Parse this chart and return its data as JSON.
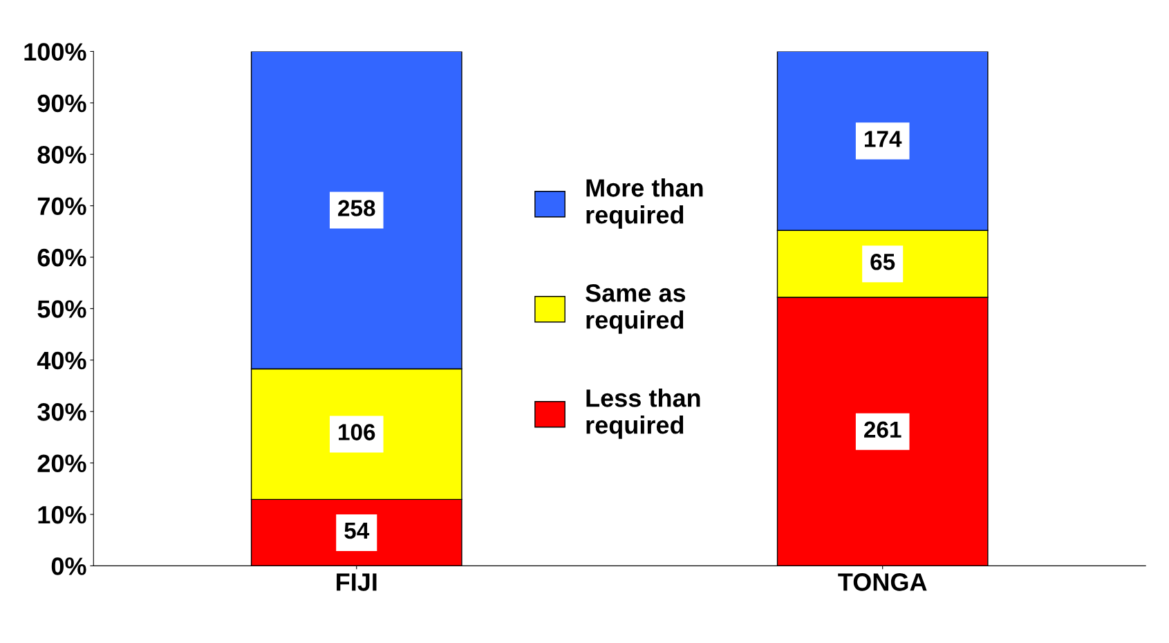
{
  "chart_data": {
    "type": "bar",
    "stacked": true,
    "categories": [
      "FIJI",
      "TONGA"
    ],
    "series": [
      {
        "name": "Less than\nrequired",
        "color": "#ff0000",
        "values": [
          12.9,
          52.2
        ]
      },
      {
        "name": "Same as\nrequired",
        "color": "#ffff00",
        "values": [
          25.4,
          13.0
        ]
      },
      {
        "name": "More than\nrequired",
        "color": "#3366ff",
        "values": [
          61.7,
          34.8
        ]
      }
    ],
    "annotations": [
      "54",
      "106",
      "258",
      "261",
      "65",
      "174"
    ],
    "ylim": [
      0,
      100
    ],
    "yticks": [
      {
        "value": 0,
        "label": "0%"
      },
      {
        "value": 10,
        "label": "10%"
      },
      {
        "value": 20,
        "label": "20%"
      },
      {
        "value": 30,
        "label": "30%"
      },
      {
        "value": 40,
        "label": "40%"
      },
      {
        "value": 50,
        "label": "50%"
      },
      {
        "value": 60,
        "label": "60%"
      },
      {
        "value": 70,
        "label": "70%"
      },
      {
        "value": 80,
        "label": "80%"
      },
      {
        "value": 90,
        "label": "90%"
      },
      {
        "value": 100,
        "label": "100%"
      }
    ],
    "grid": false,
    "legend": "center"
  }
}
